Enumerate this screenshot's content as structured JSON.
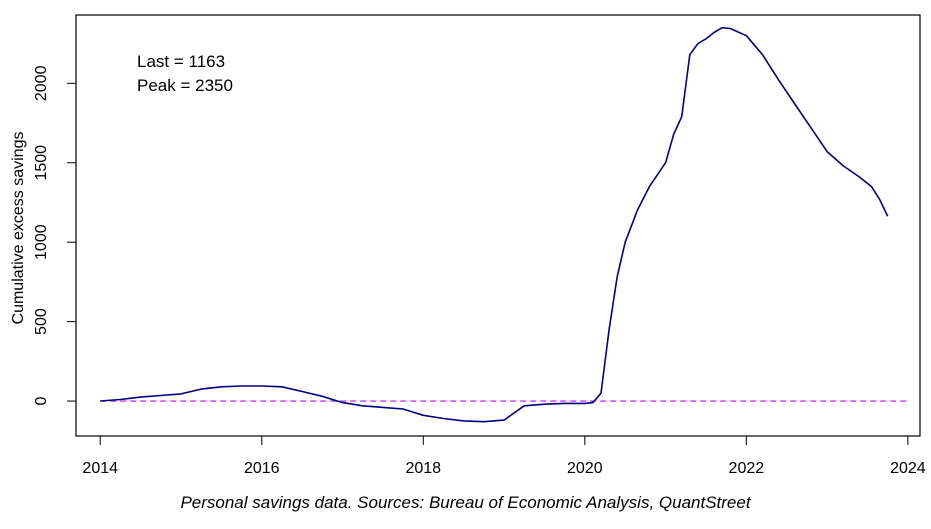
{
  "chart_data": {
    "type": "line",
    "ylabel": "Cumulative excess savings",
    "xlim": [
      2013.7,
      2024.15
    ],
    "ylim": [
      -220,
      2430
    ],
    "x_ticks": [
      2014,
      2016,
      2018,
      2020,
      2022,
      2024
    ],
    "y_ticks": [
      0,
      500,
      1000,
      1500,
      2000
    ],
    "annotations": [
      "Last = 1163",
      "Peak = 2350"
    ],
    "reference_line": {
      "y": 0,
      "style": "dashed",
      "color": "#cc33ff"
    },
    "series": [
      {
        "color": "#000080",
        "x": [
          2014.0,
          2014.25,
          2014.5,
          2014.75,
          2015.0,
          2015.25,
          2015.5,
          2015.75,
          2016.0,
          2016.25,
          2016.5,
          2016.75,
          2017.0,
          2017.25,
          2017.5,
          2017.75,
          2018.0,
          2018.25,
          2018.5,
          2018.75,
          2019.0,
          2019.25,
          2019.5,
          2019.75,
          2020.0,
          2020.1,
          2020.2,
          2020.3,
          2020.4,
          2020.5,
          2020.65,
          2020.8,
          2021.0,
          2021.1,
          2021.2,
          2021.3,
          2021.4,
          2021.5,
          2021.6,
          2021.7,
          2021.8,
          2022.0,
          2022.2,
          2022.4,
          2022.6,
          2022.8,
          2023.0,
          2023.2,
          2023.4,
          2023.55,
          2023.65,
          2023.75
        ],
        "y": [
          0,
          10,
          25,
          35,
          45,
          75,
          90,
          95,
          95,
          90,
          60,
          30,
          -10,
          -30,
          -40,
          -50,
          -90,
          -110,
          -125,
          -130,
          -120,
          -30,
          -20,
          -15,
          -15,
          -10,
          50,
          450,
          780,
          1000,
          1200,
          1350,
          1500,
          1680,
          1790,
          2180,
          2250,
          2280,
          2320,
          2350,
          2345,
          2300,
          2180,
          2020,
          1870,
          1720,
          1570,
          1480,
          1410,
          1350,
          1270,
          1163
        ]
      }
    ]
  },
  "caption": "Personal savings data. Sources: Bureau of Economic Analysis, QuantStreet"
}
